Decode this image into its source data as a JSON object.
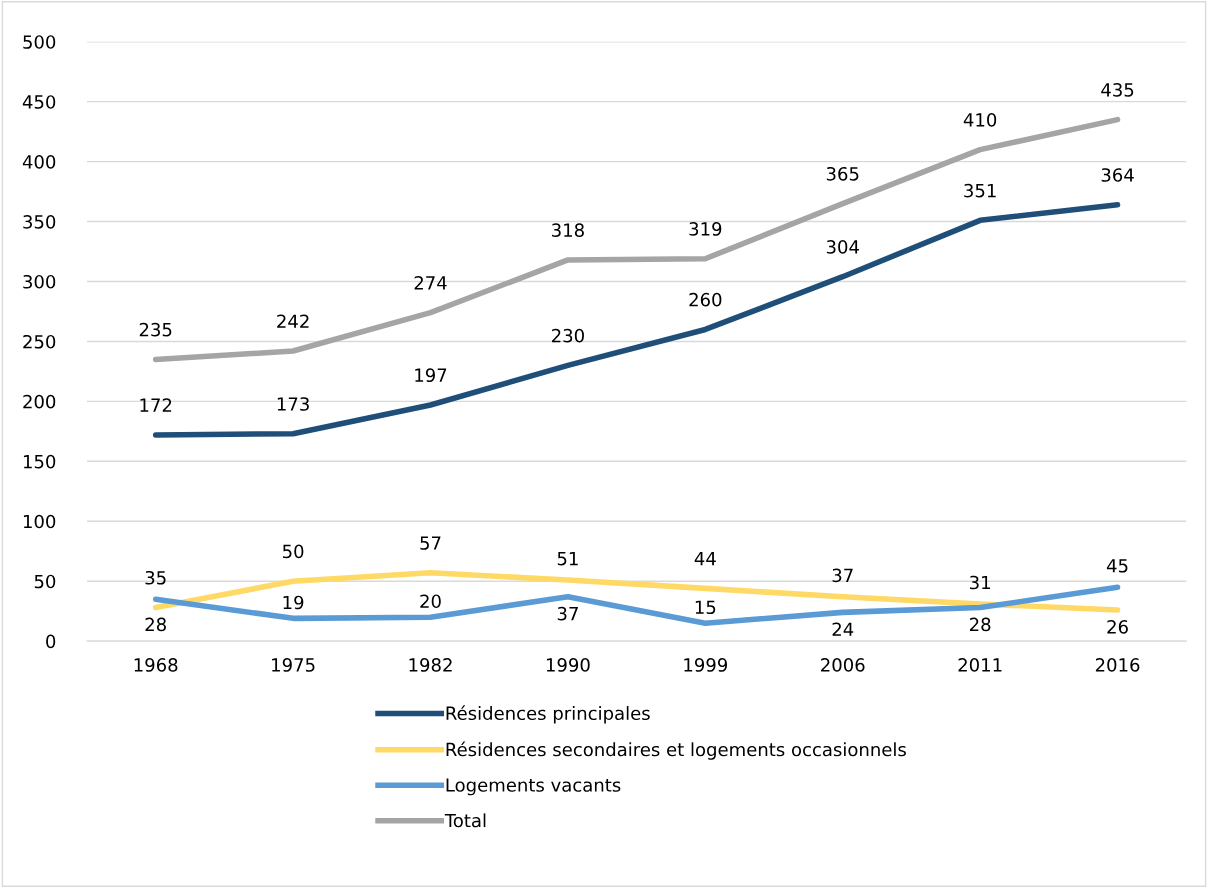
{
  "chart_data": {
    "type": "line",
    "categories": [
      "1968",
      "1975",
      "1982",
      "1990",
      "1999",
      "2006",
      "2011",
      "2016"
    ],
    "series": [
      {
        "name": "Résidences principales",
        "color": "#1f4e79",
        "values": [
          172,
          173,
          197,
          230,
          260,
          304,
          351,
          364
        ]
      },
      {
        "name": "Résidences secondaires et logements occasionnels",
        "color": "#ffd966",
        "values": [
          28,
          50,
          57,
          51,
          44,
          37,
          31,
          26
        ]
      },
      {
        "name": "Logements vacants",
        "color": "#5b9bd5",
        "values": [
          35,
          19,
          20,
          37,
          15,
          24,
          28,
          45
        ]
      },
      {
        "name": "Total",
        "color": "#a5a5a5",
        "values": [
          235,
          242,
          274,
          318,
          319,
          365,
          410,
          435
        ]
      }
    ],
    "ylim": [
      0,
      500
    ],
    "yticks": [
      0,
      50,
      100,
      150,
      200,
      250,
      300,
      350,
      400,
      450,
      500
    ],
    "grid": "y",
    "legend": "bottom",
    "data_labels": true,
    "marker": "none",
    "line_style": "solid"
  }
}
